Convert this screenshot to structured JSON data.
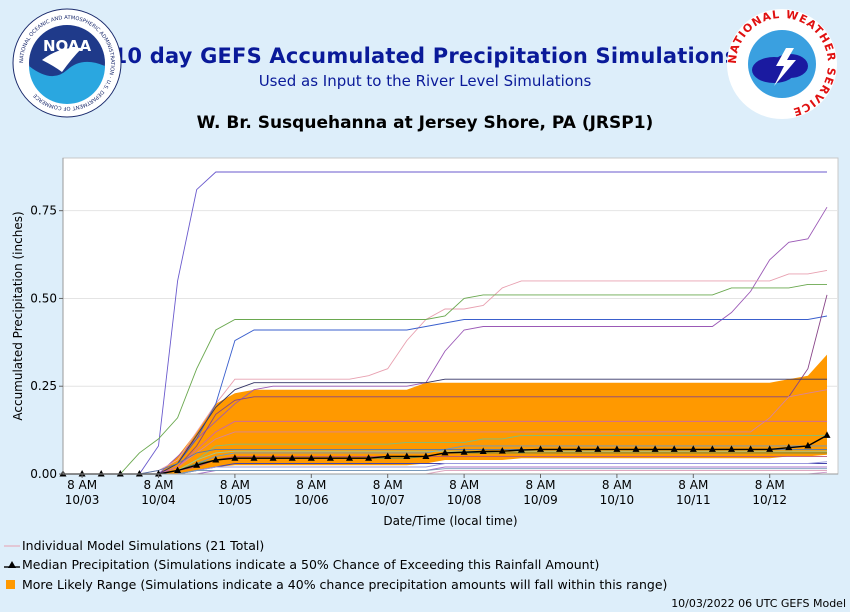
{
  "header": {
    "title": "10 day GEFS Accumulated Precipitation Simulations",
    "subtitle": "Used as Input to the River Level Simulations",
    "location": "W. Br. Susquehanna at Jersey Shore, PA (JRSP1)",
    "noaa_logo_text": "NOAA",
    "noaa_ring_text": "NATIONAL OCEANIC AND ATMOSPHERIC ADMINISTRATION · U.S. DEPARTMENT OF COMMERCE",
    "nws_ring_text": "NATIONAL WEATHER SERVICE"
  },
  "legend": {
    "individual": "Individual Model Simulations (21 Total)",
    "median": "Median Precipitation (Simulations indicate a 50% Chance of Exceeding this Rainfall Amount)",
    "range": "More Likely Range (Simulations indicate a 40% chance precipitation amounts will fall within this range)"
  },
  "footer": "10/03/2022 06 UTC GEFS Model",
  "colors": {
    "title": "#0a1a99",
    "range_fill": "#ff9900",
    "median": "#000000",
    "background": "#ddeefa",
    "plot_bg": "#ffffff"
  },
  "chart_data": {
    "type": "line",
    "xlabel": "Date/Time (local time)",
    "ylabel": "Accumulated Precipitation (inches)",
    "ylim": [
      0,
      0.9
    ],
    "yticks": [
      "0.00",
      "0.25",
      "0.50",
      "0.75"
    ],
    "x_step_hours": 6,
    "x_start": "10/03 02 AM",
    "x_ticks": [
      {
        "l1": "8 AM",
        "l2": "10/03",
        "i": 1
      },
      {
        "l1": "8 AM",
        "l2": "10/04",
        "i": 5
      },
      {
        "l1": "8 AM",
        "l2": "10/05",
        "i": 9
      },
      {
        "l1": "8 AM",
        "l2": "10/06",
        "i": 13
      },
      {
        "l1": "8 AM",
        "l2": "10/07",
        "i": 17
      },
      {
        "l1": "8 AM",
        "l2": "10/08",
        "i": 21
      },
      {
        "l1": "8 AM",
        "l2": "10/09",
        "i": 25
      },
      {
        "l1": "8 AM",
        "l2": "10/10",
        "i": 29
      },
      {
        "l1": "8 AM",
        "l2": "10/11",
        "i": 33
      },
      {
        "l1": "8 AM",
        "l2": "10/12",
        "i": 37
      }
    ],
    "median": [
      0,
      0,
      0,
      0,
      0,
      0,
      0.01,
      0.025,
      0.04,
      0.045,
      0.045,
      0.045,
      0.045,
      0.045,
      0.045,
      0.045,
      0.045,
      0.05,
      0.05,
      0.05,
      0.06,
      0.062,
      0.064,
      0.065,
      0.068,
      0.07,
      0.07,
      0.07,
      0.07,
      0.07,
      0.07,
      0.07,
      0.07,
      0.07,
      0.07,
      0.07,
      0.07,
      0.07,
      0.075,
      0.08,
      0.11
    ],
    "range_high": [
      0,
      0,
      0,
      0,
      0,
      0,
      0.05,
      0.12,
      0.2,
      0.23,
      0.24,
      0.24,
      0.24,
      0.24,
      0.24,
      0.24,
      0.24,
      0.24,
      0.24,
      0.26,
      0.26,
      0.26,
      0.26,
      0.26,
      0.26,
      0.26,
      0.26,
      0.26,
      0.26,
      0.26,
      0.26,
      0.26,
      0.26,
      0.26,
      0.26,
      0.26,
      0.26,
      0.26,
      0.27,
      0.28,
      0.34
    ],
    "range_low": [
      0,
      0,
      0,
      0,
      0,
      0,
      0,
      0.01,
      0.02,
      0.025,
      0.025,
      0.025,
      0.025,
      0.025,
      0.025,
      0.025,
      0.025,
      0.025,
      0.025,
      0.03,
      0.04,
      0.04,
      0.04,
      0.04,
      0.045,
      0.045,
      0.045,
      0.045,
      0.045,
      0.045,
      0.045,
      0.045,
      0.045,
      0.045,
      0.045,
      0.045,
      0.045,
      0.045,
      0.05,
      0.05,
      0.055
    ],
    "series": [
      {
        "color": "#6a5acd",
        "values": [
          0,
          0,
          0,
          0,
          0,
          0.08,
          0.55,
          0.81,
          0.86,
          0.86,
          0.86,
          0.86,
          0.86,
          0.86,
          0.86,
          0.86,
          0.86,
          0.86,
          0.86,
          0.86,
          0.86,
          0.86,
          0.86,
          0.86,
          0.86,
          0.86,
          0.86,
          0.86,
          0.86,
          0.86,
          0.86,
          0.86,
          0.86,
          0.86,
          0.86,
          0.86,
          0.86,
          0.86,
          0.86,
          0.86,
          0.86
        ]
      },
      {
        "color": "#9b59b6",
        "values": [
          0,
          0,
          0,
          0,
          0,
          0,
          0.05,
          0.1,
          0.15,
          0.2,
          0.24,
          0.25,
          0.25,
          0.25,
          0.25,
          0.25,
          0.25,
          0.25,
          0.25,
          0.26,
          0.35,
          0.41,
          0.42,
          0.42,
          0.42,
          0.42,
          0.42,
          0.42,
          0.42,
          0.42,
          0.42,
          0.42,
          0.42,
          0.42,
          0.42,
          0.46,
          0.52,
          0.61,
          0.66,
          0.67,
          0.76
        ]
      },
      {
        "color": "#e8a0b0",
        "values": [
          0,
          0,
          0,
          0,
          0,
          0.01,
          0.04,
          0.12,
          0.2,
          0.27,
          0.27,
          0.27,
          0.27,
          0.27,
          0.27,
          0.27,
          0.28,
          0.3,
          0.38,
          0.44,
          0.47,
          0.47,
          0.48,
          0.53,
          0.55,
          0.55,
          0.55,
          0.55,
          0.55,
          0.55,
          0.55,
          0.55,
          0.55,
          0.55,
          0.55,
          0.55,
          0.55,
          0.55,
          0.57,
          0.57,
          0.58
        ]
      },
      {
        "color": "#6aa84f",
        "values": [
          0,
          0,
          0,
          0,
          0.06,
          0.1,
          0.16,
          0.3,
          0.41,
          0.44,
          0.44,
          0.44,
          0.44,
          0.44,
          0.44,
          0.44,
          0.44,
          0.44,
          0.44,
          0.44,
          0.45,
          0.5,
          0.51,
          0.51,
          0.51,
          0.51,
          0.51,
          0.51,
          0.51,
          0.51,
          0.51,
          0.51,
          0.51,
          0.51,
          0.51,
          0.53,
          0.53,
          0.53,
          0.53,
          0.54,
          0.54
        ]
      },
      {
        "color": "#3a5fcd",
        "values": [
          0,
          0,
          0,
          0,
          0,
          0,
          0.03,
          0.1,
          0.2,
          0.38,
          0.41,
          0.41,
          0.41,
          0.41,
          0.41,
          0.41,
          0.41,
          0.41,
          0.41,
          0.42,
          0.43,
          0.44,
          0.44,
          0.44,
          0.44,
          0.44,
          0.44,
          0.44,
          0.44,
          0.44,
          0.44,
          0.44,
          0.44,
          0.44,
          0.44,
          0.44,
          0.44,
          0.44,
          0.44,
          0.44,
          0.45
        ]
      },
      {
        "color": "#884488",
        "values": [
          0,
          0,
          0,
          0,
          0,
          0,
          0.02,
          0.08,
          0.17,
          0.21,
          0.22,
          0.22,
          0.22,
          0.22,
          0.22,
          0.22,
          0.22,
          0.22,
          0.22,
          0.22,
          0.22,
          0.22,
          0.22,
          0.22,
          0.22,
          0.22,
          0.22,
          0.22,
          0.22,
          0.22,
          0.22,
          0.22,
          0.22,
          0.22,
          0.22,
          0.22,
          0.22,
          0.22,
          0.22,
          0.3,
          0.51
        ]
      },
      {
        "color": "#333366",
        "values": [
          0,
          0,
          0,
          0,
          0,
          0,
          0.03,
          0.11,
          0.19,
          0.24,
          0.26,
          0.26,
          0.26,
          0.26,
          0.26,
          0.26,
          0.26,
          0.26,
          0.26,
          0.26,
          0.27,
          0.27,
          0.27,
          0.27,
          0.27,
          0.27,
          0.27,
          0.27,
          0.27,
          0.27,
          0.27,
          0.27,
          0.27,
          0.27,
          0.27,
          0.27,
          0.27,
          0.27,
          0.27,
          0.27,
          0.27
        ]
      },
      {
        "color": "#d9849a",
        "values": [
          0,
          0,
          0,
          0,
          0,
          0,
          0.02,
          0.06,
          0.1,
          0.12,
          0.12,
          0.12,
          0.12,
          0.12,
          0.12,
          0.12,
          0.12,
          0.12,
          0.12,
          0.12,
          0.12,
          0.12,
          0.12,
          0.12,
          0.12,
          0.12,
          0.12,
          0.12,
          0.12,
          0.12,
          0.12,
          0.12,
          0.12,
          0.12,
          0.12,
          0.12,
          0.12,
          0.16,
          0.22,
          0.23,
          0.24
        ]
      },
      {
        "color": "#cc66aa",
        "values": [
          0,
          0,
          0,
          0,
          0,
          0,
          0.02,
          0.07,
          0.12,
          0.15,
          0.15,
          0.15,
          0.15,
          0.15,
          0.15,
          0.15,
          0.15,
          0.15,
          0.15,
          0.15,
          0.15,
          0.15,
          0.15,
          0.15,
          0.15,
          0.15,
          0.15,
          0.15,
          0.15,
          0.15,
          0.15,
          0.15,
          0.15,
          0.15,
          0.15,
          0.15,
          0.15,
          0.15,
          0.15,
          0.15,
          0.15
        ]
      },
      {
        "color": "#7fbf7f",
        "values": [
          0,
          0,
          0,
          0,
          0,
          0,
          0.01,
          0.04,
          0.08,
          0.085,
          0.085,
          0.085,
          0.085,
          0.085,
          0.085,
          0.085,
          0.085,
          0.085,
          0.09,
          0.09,
          0.09,
          0.09,
          0.1,
          0.1,
          0.11,
          0.11,
          0.11,
          0.11,
          0.11,
          0.11,
          0.11,
          0.11,
          0.11,
          0.11,
          0.11,
          0.11,
          0.11,
          0.11,
          0.11,
          0.11,
          0.11
        ]
      },
      {
        "color": "#6699cc",
        "values": [
          0,
          0,
          0,
          0,
          0,
          0,
          0.01,
          0.03,
          0.05,
          0.06,
          0.06,
          0.06,
          0.06,
          0.06,
          0.06,
          0.06,
          0.06,
          0.06,
          0.06,
          0.06,
          0.07,
          0.08,
          0.08,
          0.08,
          0.08,
          0.08,
          0.08,
          0.08,
          0.08,
          0.08,
          0.08,
          0.08,
          0.08,
          0.08,
          0.08,
          0.08,
          0.08,
          0.08,
          0.08,
          0.08,
          0.08
        ]
      },
      {
        "color": "#4444aa",
        "values": [
          0,
          0,
          0,
          0,
          0,
          0,
          0,
          0.01,
          0.02,
          0.03,
          0.03,
          0.03,
          0.03,
          0.03,
          0.03,
          0.03,
          0.03,
          0.03,
          0.03,
          0.03,
          0.03,
          0.03,
          0.03,
          0.03,
          0.03,
          0.03,
          0.03,
          0.03,
          0.03,
          0.03,
          0.03,
          0.03,
          0.03,
          0.03,
          0.03,
          0.03,
          0.03,
          0.03,
          0.03,
          0.03,
          0.03
        ]
      },
      {
        "color": "#aa77cc",
        "values": [
          0,
          0,
          0,
          0,
          0,
          0,
          0,
          0,
          0.01,
          0.01,
          0.01,
          0.01,
          0.01,
          0.01,
          0.01,
          0.01,
          0.01,
          0.01,
          0.01,
          0.01,
          0.02,
          0.02,
          0.02,
          0.02,
          0.02,
          0.02,
          0.02,
          0.02,
          0.02,
          0.02,
          0.02,
          0.02,
          0.02,
          0.02,
          0.02,
          0.02,
          0.02,
          0.02,
          0.02,
          0.02,
          0.02
        ]
      },
      {
        "color": "#e0a8c0",
        "values": [
          0,
          0,
          0,
          0,
          0,
          0,
          0,
          0,
          0,
          0,
          0,
          0,
          0,
          0,
          0,
          0,
          0,
          0,
          0,
          0,
          0.01,
          0.01,
          0.01,
          0.01,
          0.01,
          0.01,
          0.01,
          0.01,
          0.01,
          0.01,
          0.01,
          0.01,
          0.01,
          0.01,
          0.01,
          0.01,
          0.01,
          0.01,
          0.01,
          0.01,
          0.01
        ]
      },
      {
        "color": "#558855",
        "values": [
          0,
          0,
          0,
          0,
          0,
          0,
          0.01,
          0.03,
          0.04,
          0.045,
          0.045,
          0.045,
          0.045,
          0.045,
          0.045,
          0.045,
          0.045,
          0.045,
          0.045,
          0.05,
          0.06,
          0.06,
          0.06,
          0.06,
          0.06,
          0.06,
          0.06,
          0.06,
          0.06,
          0.06,
          0.06,
          0.06,
          0.06,
          0.06,
          0.06,
          0.06,
          0.06,
          0.06,
          0.06,
          0.06,
          0.06
        ]
      },
      {
        "color": "#9999dd",
        "values": [
          0,
          0,
          0,
          0,
          0,
          0,
          0,
          0.01,
          0.02,
          0.02,
          0.02,
          0.02,
          0.02,
          0.02,
          0.02,
          0.02,
          0.02,
          0.02,
          0.02,
          0.02,
          0.03,
          0.03,
          0.03,
          0.03,
          0.03,
          0.03,
          0.03,
          0.03,
          0.03,
          0.03,
          0.03,
          0.03,
          0.03,
          0.03,
          0.03,
          0.03,
          0.03,
          0.03,
          0.03,
          0.03,
          0.035
        ]
      },
      {
        "color": "#bb5577",
        "values": [
          0,
          0,
          0,
          0,
          0,
          0,
          0.01,
          0.02,
          0.04,
          0.05,
          0.05,
          0.05,
          0.05,
          0.05,
          0.05,
          0.05,
          0.05,
          0.05,
          0.05,
          0.05,
          0.05,
          0.05,
          0.05,
          0.05,
          0.05,
          0.05,
          0.05,
          0.05,
          0.05,
          0.05,
          0.05,
          0.05,
          0.05,
          0.05,
          0.05,
          0.05,
          0.05,
          0.05,
          0.05,
          0.05,
          0.05
        ]
      },
      {
        "color": "#7799bb",
        "values": [
          0,
          0,
          0,
          0,
          0,
          0,
          0,
          0.01,
          0.01,
          0.01,
          0.01,
          0.01,
          0.01,
          0.01,
          0.01,
          0.01,
          0.01,
          0.01,
          0.01,
          0.01,
          0.015,
          0.015,
          0.015,
          0.015,
          0.015,
          0.015,
          0.015,
          0.015,
          0.015,
          0.015,
          0.015,
          0.015,
          0.015,
          0.015,
          0.015,
          0.015,
          0.015,
          0.015,
          0.015,
          0.015,
          0.015
        ]
      },
      {
        "color": "#99cc99",
        "values": [
          0,
          0,
          0,
          0,
          0,
          0,
          0.01,
          0.04,
          0.06,
          0.065,
          0.065,
          0.065,
          0.065,
          0.065,
          0.065,
          0.065,
          0.065,
          0.065,
          0.065,
          0.065,
          0.065,
          0.065,
          0.065,
          0.065,
          0.065,
          0.065,
          0.065,
          0.065,
          0.065,
          0.065,
          0.065,
          0.065,
          0.065,
          0.065,
          0.065,
          0.065,
          0.065,
          0.065,
          0.065,
          0.065,
          0.065
        ]
      },
      {
        "color": "#cc99cc",
        "values": [
          0,
          0,
          0,
          0,
          0,
          0,
          0,
          0,
          0,
          0,
          0,
          0,
          0,
          0,
          0,
          0,
          0,
          0,
          0,
          0,
          0,
          0,
          0,
          0,
          0,
          0,
          0,
          0,
          0,
          0,
          0,
          0,
          0,
          0,
          0,
          0,
          0,
          0,
          0,
          0,
          0.005
        ]
      },
      {
        "color": "#5577aa",
        "values": [
          0,
          0,
          0,
          0,
          0,
          0.01,
          0.03,
          0.06,
          0.07,
          0.07,
          0.07,
          0.07,
          0.07,
          0.07,
          0.07,
          0.07,
          0.07,
          0.07,
          0.07,
          0.07,
          0.07,
          0.07,
          0.07,
          0.07,
          0.07,
          0.07,
          0.07,
          0.07,
          0.07,
          0.07,
          0.07,
          0.07,
          0.07,
          0.07,
          0.07,
          0.07,
          0.07,
          0.07,
          0.07,
          0.07,
          0.07
        ]
      }
    ]
  }
}
